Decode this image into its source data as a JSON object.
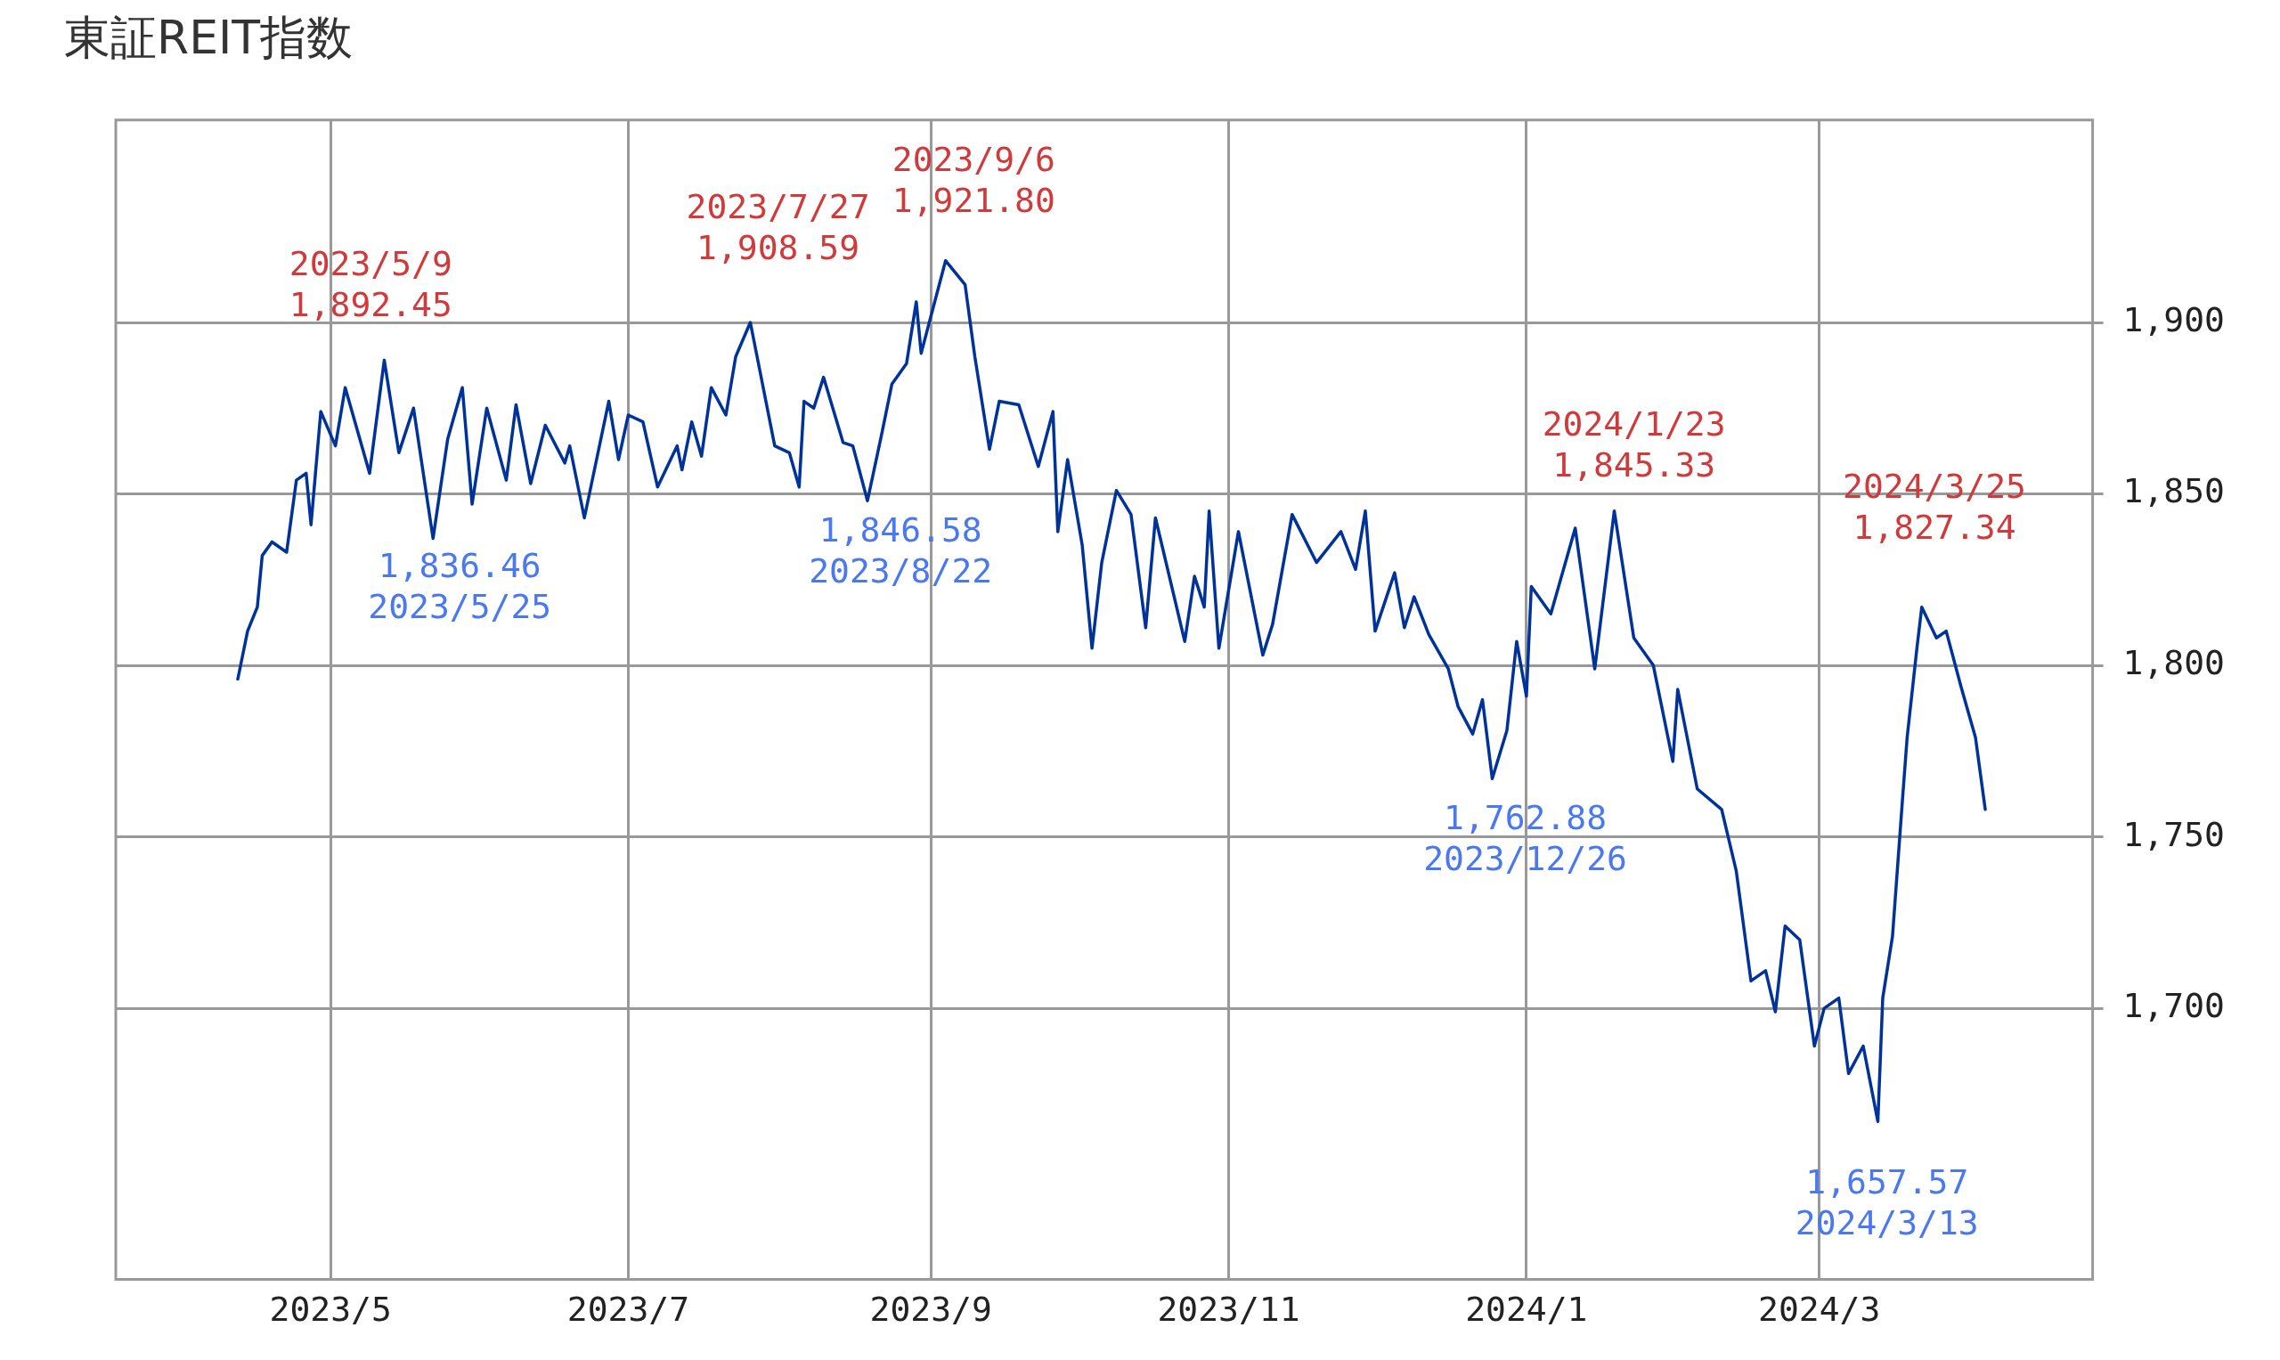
{
  "chart_data": {
    "type": "line",
    "title": "東証REIT指数",
    "x": [
      "2023-04-12",
      "2023-04-14",
      "2023-04-16",
      "2023-04-17",
      "2023-04-19",
      "2023-04-22",
      "2023-04-24",
      "2023-04-26",
      "2023-04-27",
      "2023-04-29",
      "2023-05-02",
      "2023-05-04",
      "2023-05-09",
      "2023-05-12",
      "2023-05-15",
      "2023-05-18",
      "2023-05-22",
      "2023-05-25",
      "2023-05-28",
      "2023-05-30",
      "2023-06-02",
      "2023-06-06",
      "2023-06-08",
      "2023-06-11",
      "2023-06-14",
      "2023-06-18",
      "2023-06-19",
      "2023-06-22",
      "2023-06-27",
      "2023-06-29",
      "2023-07-01",
      "2023-07-04",
      "2023-07-07",
      "2023-07-11",
      "2023-07-12",
      "2023-07-14",
      "2023-07-16",
      "2023-07-18",
      "2023-07-21",
      "2023-07-23",
      "2023-07-26",
      "2023-07-31",
      "2023-08-03",
      "2023-08-05",
      "2023-08-06",
      "2023-08-08",
      "2023-08-10",
      "2023-08-14",
      "2023-08-16",
      "2023-08-19",
      "2023-08-22",
      "2023-08-24",
      "2023-08-27",
      "2023-08-29",
      "2023-08-30",
      "2023-09-04",
      "2023-09-08",
      "2023-09-10",
      "2023-09-13",
      "2023-09-15",
      "2023-09-19",
      "2023-09-23",
      "2023-09-26",
      "2023-09-27",
      "2023-09-29",
      "2023-10-02",
      "2023-10-04",
      "2023-10-06",
      "2023-10-09",
      "2023-10-12",
      "2023-10-15",
      "2023-10-17",
      "2023-10-23",
      "2023-10-25",
      "2023-10-27",
      "2023-10-28",
      "2023-10-30",
      "2023-11-03",
      "2023-11-08",
      "2023-11-10",
      "2023-11-14",
      "2023-11-19",
      "2023-11-24",
      "2023-11-27",
      "2023-11-29",
      "2023-12-01",
      "2023-12-05",
      "2023-12-07",
      "2023-12-09",
      "2023-12-12",
      "2023-12-16",
      "2023-12-18",
      "2023-12-21",
      "2023-12-23",
      "2023-12-25",
      "2023-12-28",
      "2023-12-30",
      "2024-01-01",
      "2024-01-02",
      "2024-01-06",
      "2024-01-11",
      "2024-01-15",
      "2024-01-19",
      "2024-01-23",
      "2024-01-27",
      "2024-01-31",
      "2024-02-01",
      "2024-02-05",
      "2024-02-10",
      "2024-02-13",
      "2024-02-16",
      "2024-02-19",
      "2024-02-21",
      "2024-02-23",
      "2024-02-26",
      "2024-02-29",
      "2024-03-02",
      "2024-03-05",
      "2024-03-07",
      "2024-03-10",
      "2024-03-13",
      "2024-03-14",
      "2024-03-16",
      "2024-03-18",
      "2024-03-19",
      "2024-03-21",
      "2024-03-22",
      "2024-03-25",
      "2024-03-27",
      "2024-03-30",
      "2024-04-02",
      "2024-04-04"
    ],
    "series": [
      {
        "color": "#003399",
        "values": [
          1796,
          1810,
          1817,
          1832,
          1836,
          1833,
          1854,
          1856,
          1841,
          1874,
          1864,
          1881,
          1856,
          1889,
          1862,
          1875,
          1837,
          1866,
          1881,
          1847,
          1875,
          1854,
          1876,
          1853,
          1870,
          1859,
          1864,
          1843,
          1877,
          1860,
          1873,
          1871,
          1852,
          1864,
          1857,
          1871,
          1861,
          1881,
          1873,
          1890,
          1900,
          1864,
          1862,
          1852,
          1877,
          1875,
          1884,
          1865,
          1864,
          1848,
          1868,
          1882,
          1888,
          1906,
          1891,
          1918,
          1911,
          1890,
          1863,
          1877,
          1876,
          1858,
          1874,
          1839,
          1860,
          1835,
          1805,
          1830,
          1851,
          1844,
          1811,
          1843,
          1807,
          1826,
          1817,
          1845,
          1805,
          1839,
          1803,
          1812,
          1844,
          1830,
          1839,
          1828,
          1845,
          1810,
          1827,
          1811,
          1820,
          1809,
          1799,
          1788,
          1780,
          1790,
          1767,
          1781,
          1807,
          1791,
          1823,
          1815,
          1840,
          1799,
          1845,
          1808,
          1800,
          1772,
          1793,
          1764,
          1758,
          1740,
          1708,
          1711,
          1699,
          1724,
          1720,
          1689,
          1700,
          1703,
          1681,
          1689,
          1667,
          1703,
          1721,
          1760,
          1779,
          1805,
          1817,
          1808,
          1810,
          1794,
          1779,
          1758
        ]
      }
    ],
    "xlim": [
      "2023-03-18",
      "2024-04-26"
    ],
    "ylim": [
      1621,
      1959
    ],
    "xticks": [
      {
        "value": "2023-05-01",
        "label": "2023/5"
      },
      {
        "value": "2023-07-01",
        "label": "2023/7"
      },
      {
        "value": "2023-09-01",
        "label": "2023/9"
      },
      {
        "value": "2023-11-01",
        "label": "2023/11"
      },
      {
        "value": "2024-01-01",
        "label": "2024/1"
      },
      {
        "value": "2024-03-01",
        "label": "2024/3"
      }
    ],
    "yticks": [
      {
        "value": 1700,
        "label": "1,700"
      },
      {
        "value": 1750,
        "label": "1,750"
      },
      {
        "value": 1800,
        "label": "1,800"
      },
      {
        "value": 1850,
        "label": "1,850"
      },
      {
        "value": 1900,
        "label": "1,900"
      }
    ],
    "grid": true,
    "legend": false,
    "marker": "none",
    "line_style": "solid",
    "annotations": [
      "2023/5/9\n1,892.45",
      "1,836.46\n2023/5/25",
      "2023/7/27\n1,908.59",
      "1,846.58\n2023/8/22",
      "2023/9/6\n1,921.80",
      "1,762.88\n2023/12/26",
      "2024/1/23\n1,845.33",
      "2024/3/25\n1,827.34",
      "1,657.57\n2024/3/13"
    ]
  }
}
